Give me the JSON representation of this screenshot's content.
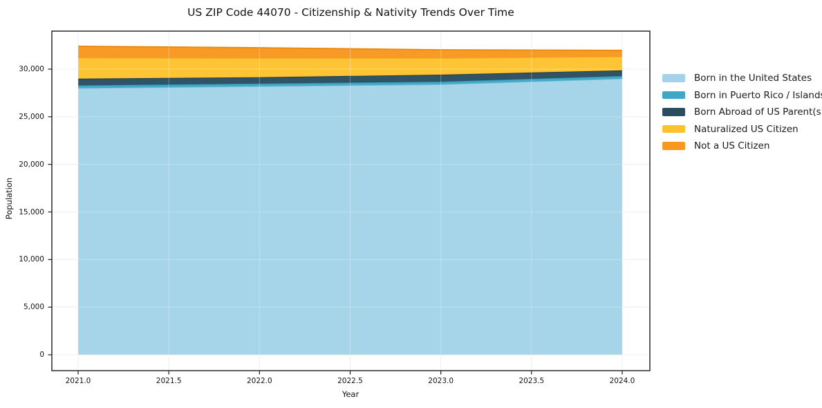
{
  "chart_data": {
    "type": "area",
    "stacked": true,
    "title": "US ZIP Code 44070 - Citizenship & Nativity Trends Over Time",
    "xlabel": "Year",
    "ylabel": "Population",
    "x": [
      2021,
      2022,
      2023,
      2024
    ],
    "xlim": [
      2020.85,
      2024.15
    ],
    "ylim": [
      -1700,
      34000
    ],
    "xtick_values": [
      2021.0,
      2021.5,
      2022.0,
      2022.5,
      2023.0,
      2023.5,
      2024.0
    ],
    "xtick_labels": [
      "2021.0",
      "2021.5",
      "2022.0",
      "2022.5",
      "2023.0",
      "2023.5",
      "2024.0"
    ],
    "ytick_values": [
      0,
      5000,
      10000,
      15000,
      20000,
      25000,
      30000
    ],
    "ytick_labels": [
      "0",
      "5,000",
      "10,000",
      "15,000",
      "20,000",
      "25,000",
      "30,000"
    ],
    "grid": true,
    "legend_position": "right-outside",
    "series": [
      {
        "name": "Born in the United States",
        "color": "#a3d3e8",
        "edge_color": "#82c0d9",
        "values": [
          28000,
          28200,
          28400,
          29000
        ]
      },
      {
        "name": "Born in Puerto Rico / Islands",
        "color": "#3fa7c5",
        "edge_color": "#2b8fad",
        "values": [
          300,
          290,
          290,
          290
        ]
      },
      {
        "name": "Born Abroad of US Parent(s)",
        "color": "#2a4d61",
        "edge_color": "#1d3a4a",
        "values": [
          700,
          660,
          730,
          580
        ]
      },
      {
        "name": "Naturalized US Citizen",
        "color": "#fdc32f",
        "edge_color": "#efaf1b",
        "values": [
          2200,
          2010,
          1740,
          1450
        ]
      },
      {
        "name": "Not a US Citizen",
        "color": "#f8981f",
        "edge_color": "#e8890e",
        "values": [
          1200,
          1090,
          870,
          660
        ]
      }
    ]
  }
}
